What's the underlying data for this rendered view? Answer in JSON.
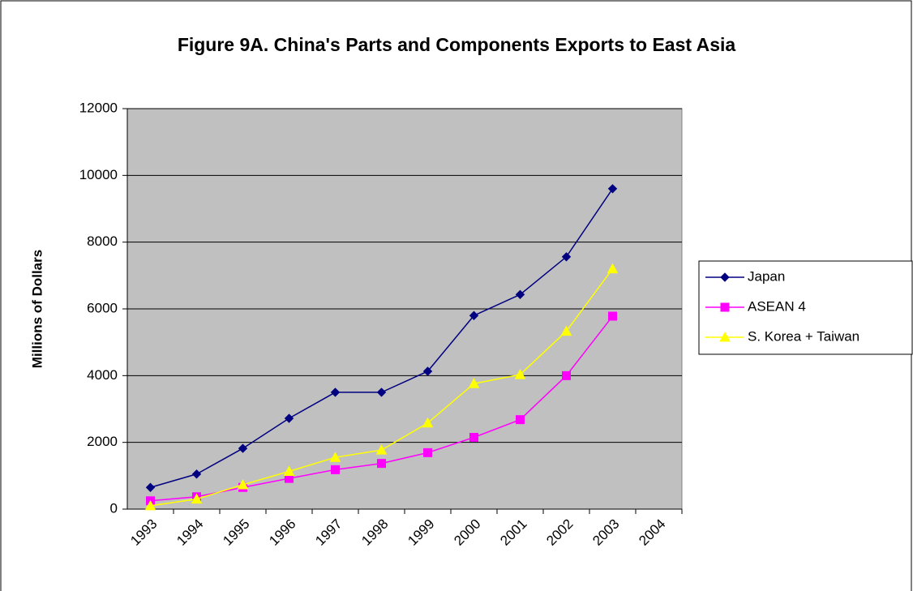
{
  "chart_data": {
    "type": "line",
    "title": "Figure 9A. China's Parts and Components Exports to East Asia",
    "y_label": "Millions of Dollars",
    "categories": [
      "1993",
      "1994",
      "1995",
      "1996",
      "1997",
      "1998",
      "1999",
      "2000",
      "2001",
      "2002",
      "2003",
      "2004"
    ],
    "series": [
      {
        "name": "Japan",
        "color": "#000080",
        "marker": "diamond",
        "values": [
          650,
          1050,
          1820,
          2720,
          3500,
          3500,
          4130,
          5800,
          6430,
          7560,
          9600,
          null
        ]
      },
      {
        "name": "ASEAN 4",
        "color": "#ff00ff",
        "marker": "square",
        "values": [
          250,
          370,
          650,
          920,
          1180,
          1370,
          1690,
          2150,
          2680,
          4000,
          5780,
          null
        ]
      },
      {
        "name": "S. Korea + Taiwan",
        "color": "#ffff00",
        "marker": "triangle",
        "values": [
          100,
          300,
          730,
          1130,
          1550,
          1770,
          2580,
          3760,
          4030,
          5330,
          7200,
          null
        ]
      }
    ],
    "ylim": [
      0,
      12000
    ],
    "yticks": [
      0,
      2000,
      4000,
      6000,
      8000,
      10000,
      12000
    ],
    "grid": true,
    "legend": "right"
  }
}
